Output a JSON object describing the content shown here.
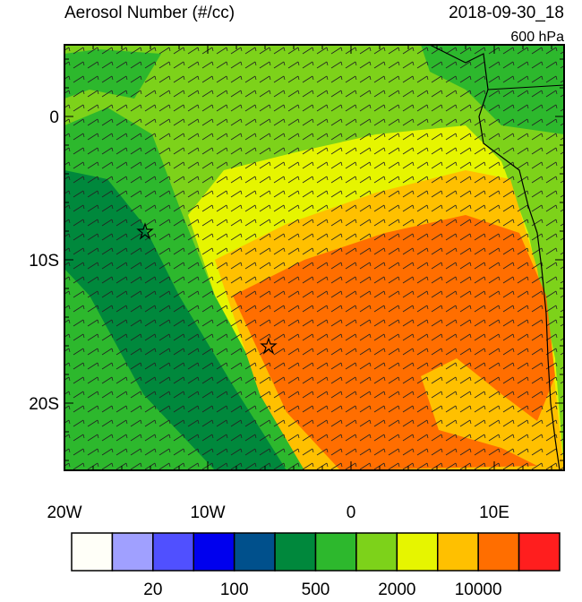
{
  "header": {
    "title": "Aerosol Number (#/cc)",
    "date": "2018-09-30_18",
    "level": "600 hPa"
  },
  "map": {
    "lat_labels": [
      "0",
      "10S",
      "20S"
    ],
    "lon_labels": [
      "20W",
      "10W",
      "0",
      "10E"
    ]
  },
  "colorbar": {
    "colors": [
      "#fffff8",
      "#a0a0ff",
      "#5050ff",
      "#0000ee",
      "#00508c",
      "#00883c",
      "#2db82d",
      "#7dd21a",
      "#e6f500",
      "#ffc000",
      "#ff6e00",
      "#ff1e1e"
    ],
    "labels": [
      20,
      100,
      500,
      2000,
      10000
    ]
  }
}
